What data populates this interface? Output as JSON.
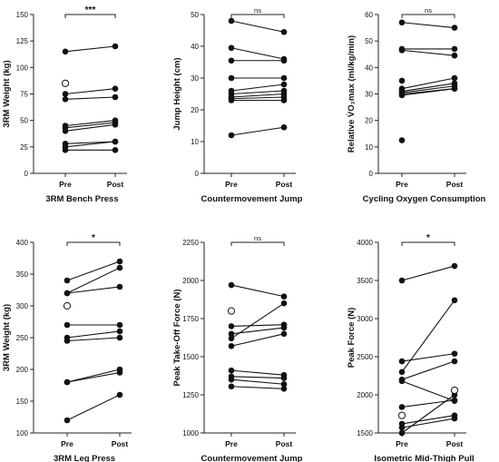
{
  "chart_data": [
    {
      "type": "scatter",
      "title": "3RM Bench Press",
      "ylabel": "3RM Weight (kg)",
      "categories": [
        "Pre",
        "Post"
      ],
      "ylim": [
        0,
        150
      ],
      "yticks": [
        0,
        25,
        50,
        75,
        100,
        125,
        150
      ],
      "significance": "***",
      "pairs": [
        [
          115,
          120
        ],
        [
          75,
          80
        ],
        [
          70,
          72
        ],
        [
          45,
          50
        ],
        [
          43,
          48
        ],
        [
          40,
          46
        ],
        [
          28,
          30
        ],
        [
          25,
          30
        ],
        [
          22,
          22
        ]
      ],
      "outliers": [
        {
          "x": "Pre",
          "y": 85
        }
      ]
    },
    {
      "type": "scatter",
      "title": "Countermovement Jump",
      "ylabel": "Jump Height (cm)",
      "categories": [
        "Pre",
        "Post"
      ],
      "ylim": [
        0,
        50
      ],
      "yticks": [
        0,
        10,
        20,
        30,
        40,
        50
      ],
      "significance": "ns",
      "pairs": [
        [
          48,
          44.5
        ],
        [
          39.5,
          36
        ],
        [
          35.5,
          35.5
        ],
        [
          30,
          30
        ],
        [
          26,
          28
        ],
        [
          25,
          26
        ],
        [
          24,
          25
        ],
        [
          23.5,
          24
        ],
        [
          23,
          23
        ],
        [
          12,
          14.5
        ]
      ],
      "outliers": []
    },
    {
      "type": "scatter",
      "title": "Cycling Oxygen Consumption",
      "ylabel": "Relative V̇O₂max (ml/kg/min)",
      "categories": [
        "Pre",
        "Post"
      ],
      "ylim": [
        0,
        60
      ],
      "yticks": [
        0,
        10,
        20,
        30,
        40,
        50,
        60
      ],
      "significance": "ns",
      "pairs": [
        [
          57,
          55
        ],
        [
          47,
          47
        ],
        [
          46.5,
          44.5
        ],
        [
          32,
          36
        ],
        [
          31,
          34
        ],
        [
          30.5,
          33
        ],
        [
          30,
          32
        ],
        [
          29.5,
          32
        ]
      ],
      "unpaired": [
        {
          "x": "Pre",
          "y": 35
        },
        {
          "x": "Pre",
          "y": 12.5
        }
      ],
      "outliers": []
    },
    {
      "type": "scatter",
      "title": "3RM Leg Press",
      "ylabel": "3RM Weight (kg)",
      "categories": [
        "Pre",
        "Post"
      ],
      "ylim": [
        100,
        400
      ],
      "yticks": [
        100,
        150,
        200,
        250,
        300,
        350,
        400
      ],
      "significance": "*",
      "pairs": [
        [
          340,
          370
        ],
        [
          320,
          360
        ],
        [
          320,
          330
        ],
        [
          270,
          270
        ],
        [
          250,
          260
        ],
        [
          245,
          250
        ],
        [
          180,
          200
        ],
        [
          180,
          195
        ],
        [
          120,
          160
        ]
      ],
      "outliers": [
        {
          "x": "Pre",
          "y": 300
        }
      ]
    },
    {
      "type": "scatter",
      "title": "Countermovement Jump",
      "ylabel": "Peak Take-Off Force (N)",
      "categories": [
        "Pre",
        "Post"
      ],
      "ylim": [
        1000,
        2250
      ],
      "yticks": [
        1000,
        1250,
        1500,
        1750,
        2000,
        2250
      ],
      "significance": "ns",
      "pairs": [
        [
          1970,
          1895
        ],
        [
          1700,
          1710
        ],
        [
          1650,
          1690
        ],
        [
          1620,
          1850
        ],
        [
          1570,
          1650
        ],
        [
          1410,
          1380
        ],
        [
          1370,
          1360
        ],
        [
          1350,
          1320
        ],
        [
          1305,
          1290
        ]
      ],
      "outliers": [
        {
          "x": "Pre",
          "y": 1800
        }
      ]
    },
    {
      "type": "scatter",
      "title": "Isometric Mid-Thigh Pull",
      "ylabel": "Peak Force (N)",
      "categories": [
        "Pre",
        "Post"
      ],
      "ylim": [
        1500,
        4000
      ],
      "yticks": [
        1500,
        2000,
        2500,
        3000,
        3500,
        4000
      ],
      "significance": "*",
      "pairs": [
        [
          3500,
          3690
        ],
        [
          2440,
          2540
        ],
        [
          2300,
          3240
        ],
        [
          2200,
          2440
        ],
        [
          2180,
          1920
        ],
        [
          1840,
          1930
        ],
        [
          1620,
          1730
        ],
        [
          1570,
          1690
        ],
        [
          1500,
          2000
        ]
      ],
      "outliers": [
        {
          "x": "Pre",
          "y": 1730
        },
        {
          "x": "Post",
          "y": 2060
        }
      ]
    }
  ]
}
